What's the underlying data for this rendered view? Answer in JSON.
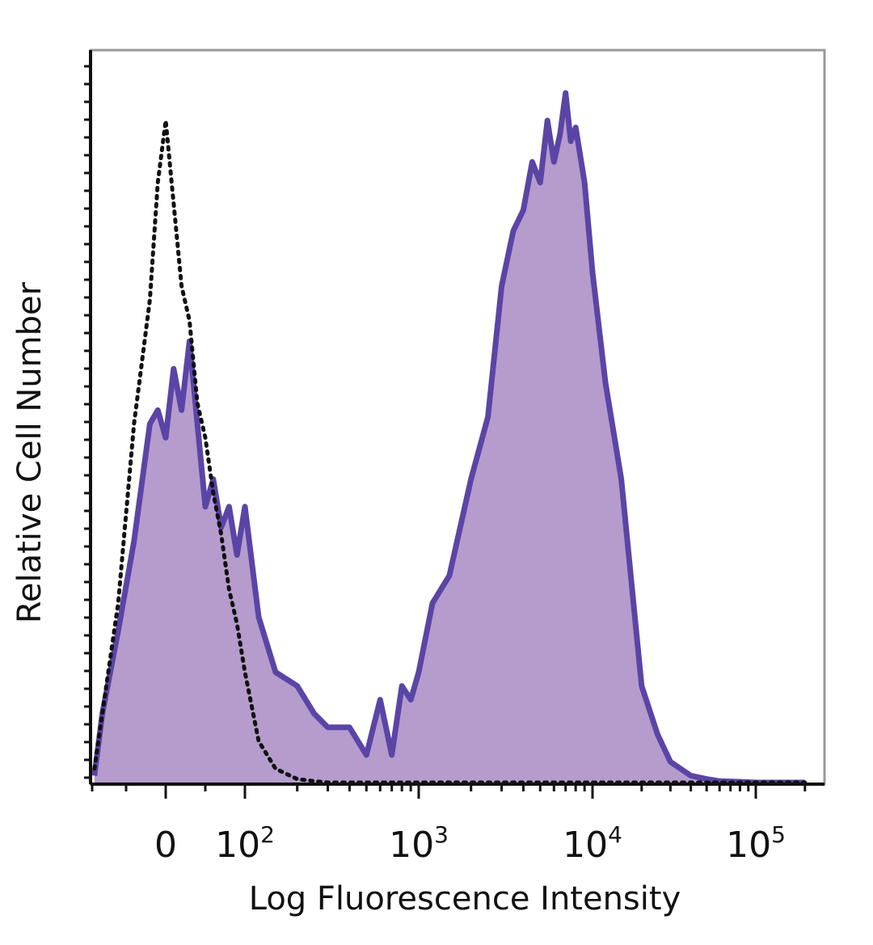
{
  "chart_data": {
    "type": "area",
    "title": "",
    "xlabel": "Log Fluorescence Intensity",
    "ylabel": "Relative Cell Number",
    "x_scale": "biexponential (linear near 0, log above)",
    "xlim": [
      -100,
      200000
    ],
    "ylim": [
      0,
      100
    ],
    "grid": false,
    "legend": "none",
    "x_ticks": [
      {
        "value": 0,
        "base": "0",
        "exp": ""
      },
      {
        "value": 100,
        "base": "10",
        "exp": "2"
      },
      {
        "value": 1000,
        "base": "10",
        "exp": "3"
      },
      {
        "value": 10000,
        "base": "10",
        "exp": "4"
      },
      {
        "value": 100000,
        "base": "10",
        "exp": "5"
      }
    ],
    "series": [
      {
        "style": "filled",
        "color": "#5a45a6",
        "fill": "#b59ccd",
        "x": [
          -90,
          -80,
          -60,
          -40,
          -20,
          -10,
          0,
          10,
          20,
          30,
          40,
          50,
          60,
          70,
          80,
          90,
          100,
          120,
          150,
          200,
          250,
          300,
          400,
          500,
          600,
          700,
          800,
          900,
          1000,
          1200,
          1500,
          2000,
          2500,
          3000,
          3500,
          4000,
          4500,
          5000,
          5500,
          6000,
          6500,
          7000,
          7500,
          8000,
          9000,
          10000,
          12000,
          15000,
          20000,
          25000,
          30000,
          40000,
          50000,
          60000,
          80000,
          100000,
          150000,
          200000
        ],
        "y": [
          1,
          10,
          22,
          35,
          52,
          54,
          50,
          60,
          54,
          64,
          52,
          40,
          44,
          37,
          40,
          33,
          40,
          24,
          16,
          14,
          10,
          8,
          8,
          4,
          12,
          4,
          14,
          12,
          16,
          26,
          30,
          44,
          53,
          72,
          80,
          83,
          90,
          87,
          96,
          90,
          94,
          100,
          93,
          95,
          87,
          74,
          58,
          44,
          14,
          7,
          3,
          1,
          0.5,
          0.2,
          0.1,
          0,
          0,
          0
        ]
      },
      {
        "style": "dotted",
        "color": "#111111",
        "fill": "none",
        "x": [
          -90,
          -80,
          -60,
          -40,
          -20,
          -10,
          0,
          10,
          20,
          30,
          40,
          50,
          60,
          70,
          80,
          90,
          100,
          120,
          150,
          200,
          250,
          300,
          400,
          500,
          600,
          700,
          800,
          900,
          1000,
          1200,
          1500,
          2000,
          2500,
          3000,
          3500,
          4000,
          4500,
          5000,
          5500,
          6000,
          6500,
          7000,
          7500,
          8000,
          9000,
          10000,
          12000,
          15000,
          20000,
          25000,
          30000,
          40000,
          50000,
          60000,
          80000,
          100000,
          150000,
          200000
        ],
        "y": [
          2,
          10,
          26,
          52,
          70,
          87,
          96,
          84,
          72,
          67,
          55,
          50,
          42,
          36,
          28,
          23,
          16,
          6,
          2,
          0.5,
          0.2,
          0,
          0,
          0,
          0,
          0,
          0,
          0,
          0,
          0,
          0,
          0,
          0,
          0,
          0,
          0,
          0,
          0,
          0,
          0,
          0,
          0,
          0,
          0,
          0,
          0,
          0,
          0,
          0,
          0,
          0,
          0,
          0,
          0,
          0,
          0,
          0,
          0
        ]
      }
    ]
  }
}
